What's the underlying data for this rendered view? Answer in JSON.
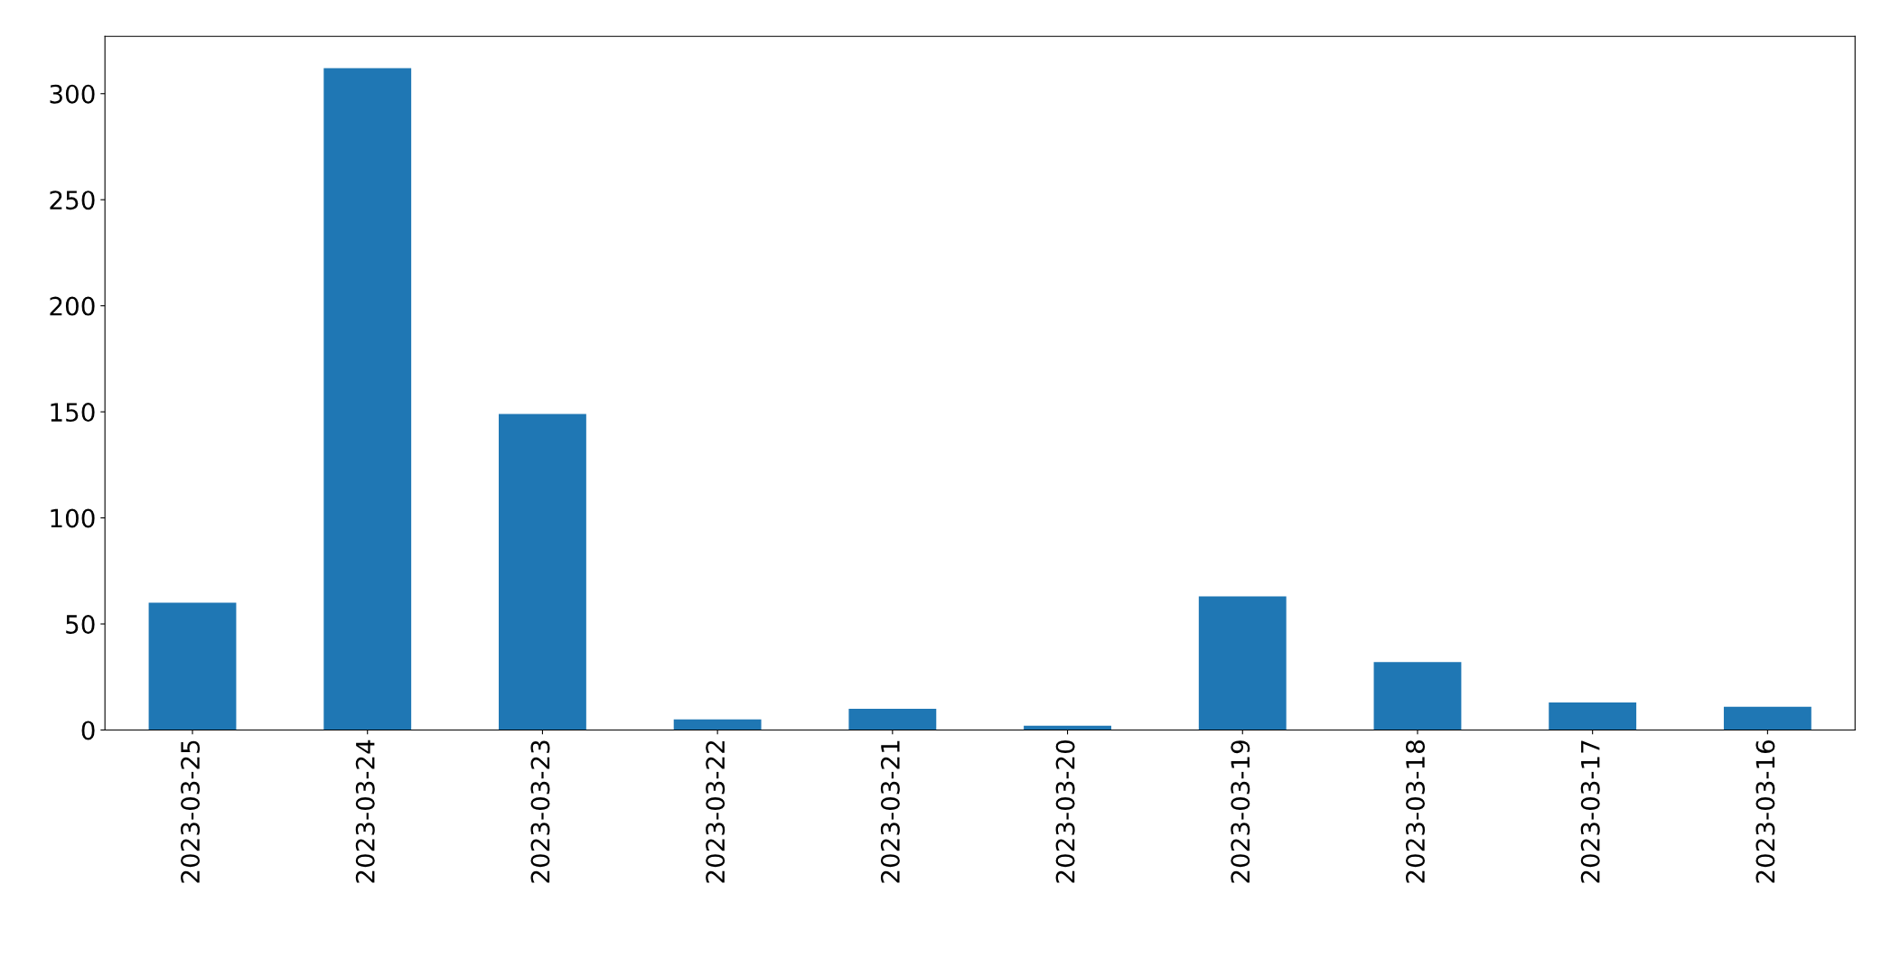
{
  "chart_data": {
    "type": "bar",
    "categories": [
      "2023-03-25",
      "2023-03-24",
      "2023-03-23",
      "2023-03-22",
      "2023-03-21",
      "2023-03-20",
      "2023-03-19",
      "2023-03-18",
      "2023-03-17",
      "2023-03-16"
    ],
    "values": [
      60,
      312,
      149,
      5,
      10,
      2,
      63,
      32,
      13,
      11
    ],
    "color": "#1f77b4",
    "ylim": [
      0,
      327
    ],
    "yticks": [
      0,
      50,
      100,
      150,
      200,
      250,
      300
    ],
    "grid": false,
    "legend": false
  }
}
